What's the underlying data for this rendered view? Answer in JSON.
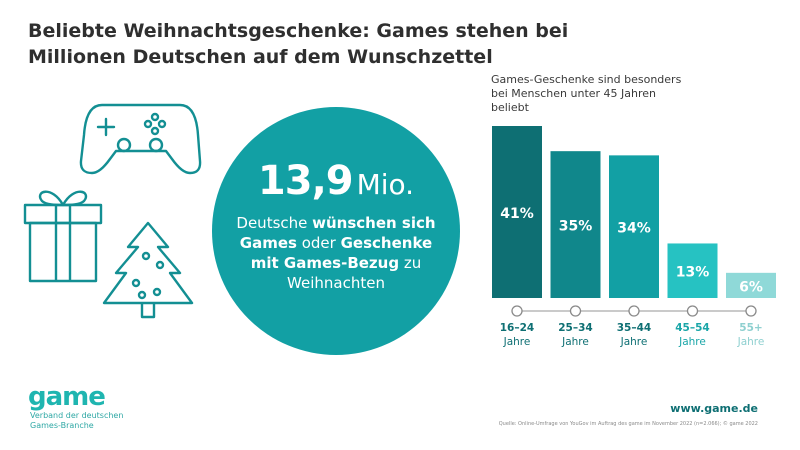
{
  "title_line1": "Beliebte Weihnachtsgeschenke: Games stehen bei",
  "title_line2": "Millionen Deutschen auf dem Wunschzettel",
  "circle": {
    "number": "13,9",
    "unit": "Mio.",
    "text": [
      {
        "t": "Deutsche ",
        "b": false
      },
      {
        "t": "wünschen sich Games",
        "b": true
      },
      {
        "t": " oder ",
        "b": false
      },
      {
        "t": "Geschenke mit Games-Bezug",
        "b": true
      },
      {
        "t": " zu Weihnachten",
        "b": false
      }
    ]
  },
  "chart_subtitle": "Games-Geschenke sind besonders bei Menschen unter 45 Jahren beliebt",
  "chart_data": {
    "type": "bar",
    "categories": [
      "16–24",
      "25–34",
      "35–44",
      "45–54",
      "55+"
    ],
    "category_sublabel": "Jahre",
    "values": [
      41,
      35,
      34,
      13,
      6
    ],
    "value_labels": [
      "41%",
      "35%",
      "34%",
      "13%",
      "6%"
    ],
    "unit": "%",
    "colors": [
      "#0e6f73",
      "#10878b",
      "#12a0a4",
      "#26c2c2",
      "#8fd9d8"
    ],
    "label_colors": [
      "#0e6f73",
      "#0e6f73",
      "#0e6f73",
      "#1aa6a8",
      "#8fd0d0"
    ],
    "ylim": [
      0,
      41
    ],
    "grid": false
  },
  "footer": {
    "logo": "game",
    "subtitle_line1": "Verband der deutschen",
    "subtitle_line2": "Games-Branche",
    "site": "www.game.de",
    "source": "Quelle: Online-Umfrage von YouGov im Auftrag des game im November 2022 (n=2.066); © game 2022"
  }
}
